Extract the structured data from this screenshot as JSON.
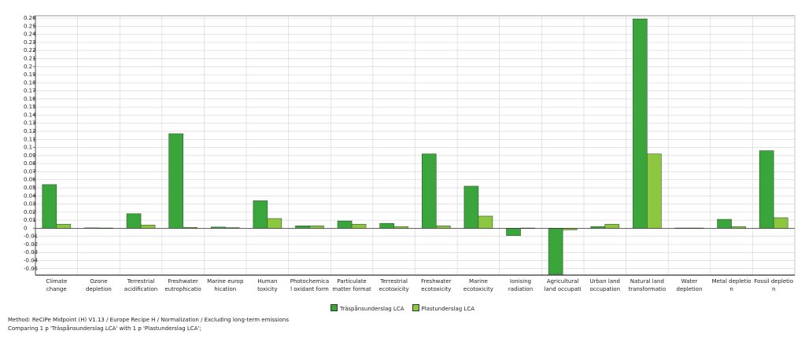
{
  "chart_data": {
    "type": "bar",
    "categories": [
      "Climate\nchange",
      "Ozone\ndepletion",
      "Terrestrial\nacidification",
      "Freshwater\neutrophicatio",
      "Marine europ\nhication",
      "Human\ntoxicity",
      "Photochemica\nl oxidant form",
      "Particulate\nmatter format",
      "Terrestrial\necotoxicity",
      "Freshwater\necotoxicity",
      "Marine\necotoxicity",
      "Ionising\nradiation",
      "Agricultural\nland occupati",
      "Urban land\noccupation",
      "Natural land\ntransformatio",
      "Water\ndepletion",
      "Metal depletio\nn",
      "Fossil depletio\nn"
    ],
    "series": [
      {
        "name": "Träspånsunderslag LCA",
        "color": "#3aa53a",
        "values": [
          0.054,
          0.0005,
          0.018,
          0.117,
          0.0015,
          0.034,
          0.003,
          0.009,
          0.006,
          0.092,
          0.052,
          -0.009,
          -0.057,
          0.002,
          0.259,
          0.0003,
          0.011,
          0.096
        ]
      },
      {
        "name": "Plastunderslag LCA",
        "color": "#8dc63f",
        "values": [
          0.005,
          0.0003,
          0.004,
          0.001,
          0.0008,
          0.012,
          0.003,
          0.005,
          0.002,
          0.003,
          0.015,
          0.0003,
          -0.002,
          0.005,
          0.092,
          0.0003,
          0.002,
          0.013
        ]
      }
    ],
    "ylim": [
      -0.058,
      0.263
    ],
    "yticks": [
      0.26,
      0.25,
      0.24,
      0.23,
      0.22,
      0.21,
      0.2,
      0.19,
      0.18,
      0.17,
      0.16,
      0.15,
      0.14,
      0.13,
      0.12,
      0.11,
      0.1,
      0.09,
      0.08,
      0.07,
      0.06,
      0.05,
      0.04,
      0.03,
      0.02,
      0.01,
      0,
      -0.01,
      -0.02,
      -0.03,
      -0.04,
      -0.05
    ],
    "grid": true,
    "legend": "bottom",
    "footer": [
      "Method: ReCiPe Midpoint (H) V1.13 / Europe Recipe H / Normalization / Excluding long-term emissions",
      "Comparing 1 p 'Träspånsunderslag LCA' with 1 p 'Plastunderslag LCA';"
    ]
  }
}
